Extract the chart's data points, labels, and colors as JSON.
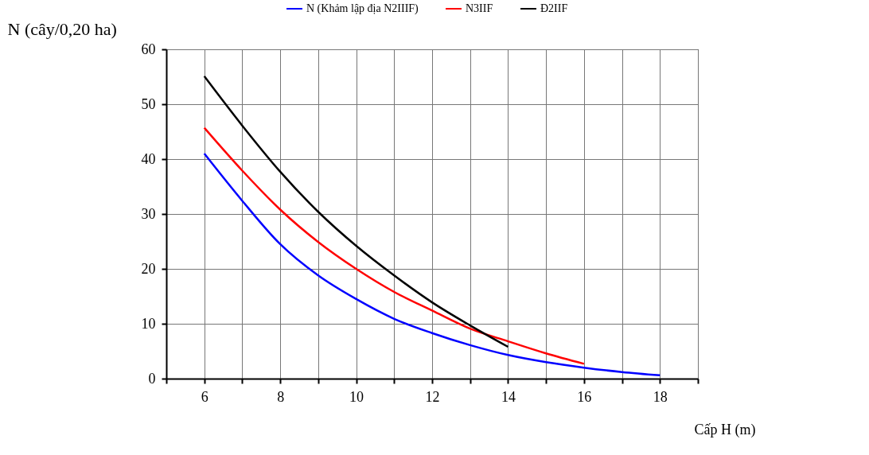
{
  "chart_data": {
    "type": "line",
    "xlabel": "Cấp H (m)",
    "ylabel": "N (cây/0,20 ha)",
    "x": [
      6,
      7,
      8,
      9,
      10,
      11,
      12,
      13,
      14,
      15,
      16,
      17,
      18
    ],
    "series": [
      {
        "name": "N (Khảm lập địa N2IIIF)",
        "color": "#0000ff",
        "values": [
          41.0,
          32.4,
          24.5,
          18.8,
          14.5,
          10.9,
          8.3,
          6.1,
          4.3,
          3.0,
          2.0,
          1.2,
          0.6
        ]
      },
      {
        "name": "N3IIF",
        "color": "#ff0000",
        "values": [
          45.7,
          37.9,
          30.8,
          24.9,
          20.0,
          15.8,
          12.4,
          9.1,
          6.8,
          4.6,
          2.7,
          null,
          null
        ]
      },
      {
        "name": "Đ2IIF",
        "color": "#000000",
        "values": [
          55.1,
          46.1,
          37.7,
          30.4,
          24.2,
          18.8,
          13.9,
          9.7,
          5.8,
          null,
          null,
          null,
          null
        ]
      }
    ],
    "xlim": [
      5,
      19
    ],
    "xticks": [
      {
        "value": 5,
        "label": null
      },
      6,
      {
        "value": 7,
        "label": null
      },
      8,
      {
        "value": 9,
        "label": null
      },
      10,
      {
        "value": 11,
        "label": null
      },
      12,
      {
        "value": 13,
        "label": null
      },
      14,
      {
        "value": 15,
        "label": null
      },
      16,
      {
        "value": 17,
        "label": null
      },
      18,
      {
        "value": 19,
        "label": null
      }
    ],
    "ylim": [
      0,
      60
    ],
    "yticks": [
      0,
      10,
      20,
      30,
      40,
      50,
      60
    ],
    "grid": true,
    "legend": "top",
    "marker": "none",
    "line_style": "solid"
  }
}
